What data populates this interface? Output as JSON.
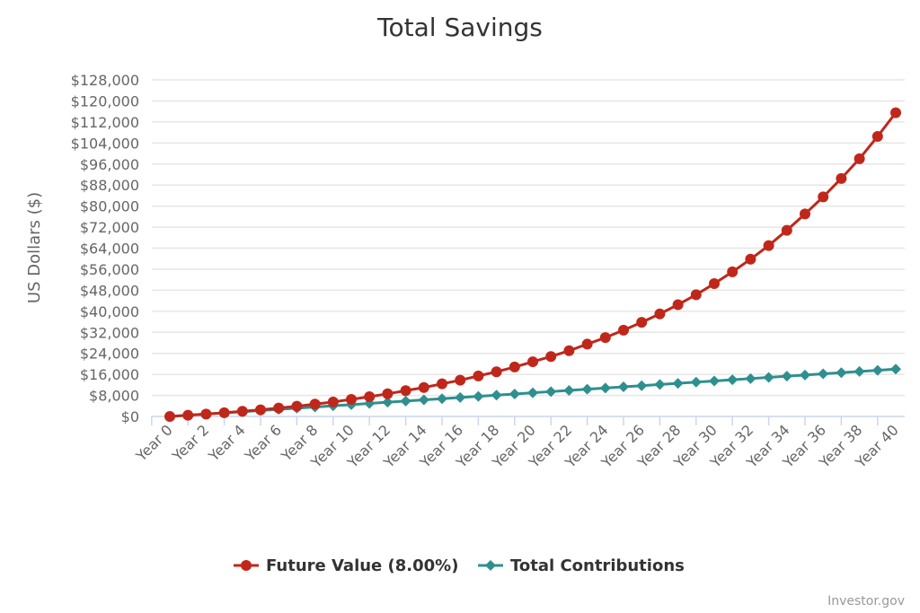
{
  "chart_data": {
    "type": "line",
    "title": "Total Savings",
    "ylabel": "US Dollars ($)",
    "xlabel": "",
    "ylim": [
      0,
      128000
    ],
    "y_tick_values": [
      0,
      8000,
      16000,
      24000,
      32000,
      40000,
      48000,
      56000,
      64000,
      72000,
      80000,
      88000,
      96000,
      104000,
      112000,
      120000,
      128000
    ],
    "y_tick_labels": [
      "$0",
      "$8,000",
      "$16,000",
      "$24,000",
      "$32,000",
      "$40,000",
      "$48,000",
      "$56,000",
      "$64,000",
      "$72,000",
      "$80,000",
      "$88,000",
      "$96,000",
      "$104,000",
      "$112,000",
      "$120,000",
      "$128,000"
    ],
    "categories": [
      "Year 0",
      "Year 1",
      "Year 2",
      "Year 3",
      "Year 4",
      "Year 5",
      "Year 6",
      "Year 7",
      "Year 8",
      "Year 9",
      "Year 10",
      "Year 11",
      "Year 12",
      "Year 13",
      "Year 14",
      "Year 15",
      "Year 16",
      "Year 17",
      "Year 18",
      "Year 19",
      "Year 20",
      "Year 21",
      "Year 22",
      "Year 23",
      "Year 24",
      "Year 25",
      "Year 26",
      "Year 27",
      "Year 28",
      "Year 29",
      "Year 30",
      "Year 31",
      "Year 32",
      "Year 33",
      "Year 34",
      "Year 35",
      "Year 36",
      "Year 37",
      "Year 38",
      "Year 39",
      "Year 40"
    ],
    "x_tick_labels": [
      "Year 0",
      "Year 2",
      "Year 4",
      "Year 6",
      "Year 8",
      "Year 10",
      "Year 12",
      "Year 14",
      "Year 16",
      "Year 18",
      "Year 20",
      "Year 22",
      "Year 24",
      "Year 26",
      "Year 28",
      "Year 30",
      "Year 32",
      "Year 34",
      "Year 36",
      "Year 38",
      "Year 40"
    ],
    "series": [
      {
        "name": "Future Value (8.00%)",
        "color": "#c0271b",
        "marker": "circle",
        "values": [
          0,
          450,
          900,
          1400,
          1950,
          2500,
          3200,
          3900,
          4700,
          5500,
          6500,
          7500,
          8600,
          9800,
          11000,
          12400,
          13800,
          15400,
          17000,
          18800,
          20800,
          22800,
          25000,
          27500,
          30000,
          32800,
          35800,
          39000,
          42500,
          46300,
          50500,
          55000,
          59800,
          65000,
          70800,
          77000,
          83500,
          90500,
          98000,
          106500,
          115500
        ]
      },
      {
        "name": "Total Contributions",
        "color": "#2f8f8f",
        "marker": "diamond",
        "values": [
          0,
          450,
          900,
          1350,
          1800,
          2250,
          2700,
          3150,
          3600,
          4050,
          4500,
          4950,
          5400,
          5850,
          6300,
          6750,
          7200,
          7650,
          8100,
          8550,
          9000,
          9450,
          9900,
          10350,
          10800,
          11250,
          11700,
          12150,
          12600,
          13050,
          13500,
          13950,
          14400,
          14850,
          15300,
          15750,
          16200,
          16650,
          17100,
          17550,
          18000
        ]
      }
    ],
    "grid": true,
    "legend_position": "bottom-center"
  },
  "credit": "Investor.gov"
}
